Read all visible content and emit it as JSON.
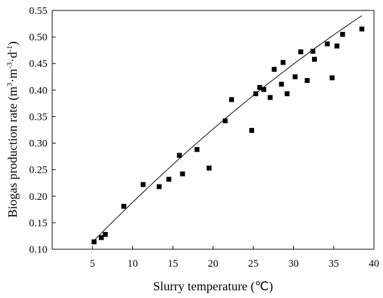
{
  "chart_data": {
    "type": "scatter",
    "xlabel": "Slurry temperature (℃)",
    "ylabel_main": "Biogas production rate (m",
    "ylabel_sup1": "3",
    "ylabel_mid1": "·m",
    "ylabel_sup2": "-3",
    "ylabel_mid2": "·d",
    "ylabel_sup3": "-1",
    "ylabel_end": ")",
    "xlim": [
      0,
      40
    ],
    "ylim": [
      0.1,
      0.55
    ],
    "x_ticks": [
      5,
      10,
      15,
      20,
      25,
      30,
      35,
      40
    ],
    "x_tick_labels": [
      "5",
      "10",
      "15",
      "20",
      "25",
      "30",
      "35",
      "40"
    ],
    "y_ticks": [
      0.1,
      0.15,
      0.2,
      0.25,
      0.3,
      0.35,
      0.4,
      0.45,
      0.5,
      0.55
    ],
    "y_tick_labels": [
      "0.10",
      "0.15",
      "0.20",
      "0.25",
      "0.30",
      "0.35",
      "0.40",
      "0.45",
      "0.50",
      "0.55"
    ],
    "grid": false,
    "marker": "square",
    "color": "#000000",
    "points": [
      {
        "x": 5.2,
        "y": 0.114
      },
      {
        "x": 6.1,
        "y": 0.122
      },
      {
        "x": 6.6,
        "y": 0.128
      },
      {
        "x": 8.9,
        "y": 0.181
      },
      {
        "x": 11.3,
        "y": 0.222
      },
      {
        "x": 13.3,
        "y": 0.218
      },
      {
        "x": 14.5,
        "y": 0.232
      },
      {
        "x": 15.8,
        "y": 0.277
      },
      {
        "x": 16.2,
        "y": 0.242
      },
      {
        "x": 18.0,
        "y": 0.288
      },
      {
        "x": 19.5,
        "y": 0.253
      },
      {
        "x": 21.5,
        "y": 0.342
      },
      {
        "x": 22.3,
        "y": 0.382
      },
      {
        "x": 24.8,
        "y": 0.324
      },
      {
        "x": 25.3,
        "y": 0.393
      },
      {
        "x": 25.8,
        "y": 0.405
      },
      {
        "x": 26.3,
        "y": 0.401
      },
      {
        "x": 27.1,
        "y": 0.386
      },
      {
        "x": 27.6,
        "y": 0.439
      },
      {
        "x": 28.5,
        "y": 0.411
      },
      {
        "x": 28.7,
        "y": 0.452
      },
      {
        "x": 29.2,
        "y": 0.393
      },
      {
        "x": 30.2,
        "y": 0.425
      },
      {
        "x": 30.9,
        "y": 0.472
      },
      {
        "x": 31.7,
        "y": 0.418
      },
      {
        "x": 32.4,
        "y": 0.473
      },
      {
        "x": 32.6,
        "y": 0.458
      },
      {
        "x": 34.2,
        "y": 0.487
      },
      {
        "x": 34.8,
        "y": 0.423
      },
      {
        "x": 35.4,
        "y": 0.483
      },
      {
        "x": 36.1,
        "y": 0.505
      },
      {
        "x": 38.5,
        "y": 0.515
      }
    ],
    "fit_curve": {
      "type": "quadratic",
      "x_range": [
        5,
        38.5
      ],
      "coefficients": {
        "a": -7.996e-05,
        "b": 0.016215,
        "c": 0.03437
      }
    }
  }
}
